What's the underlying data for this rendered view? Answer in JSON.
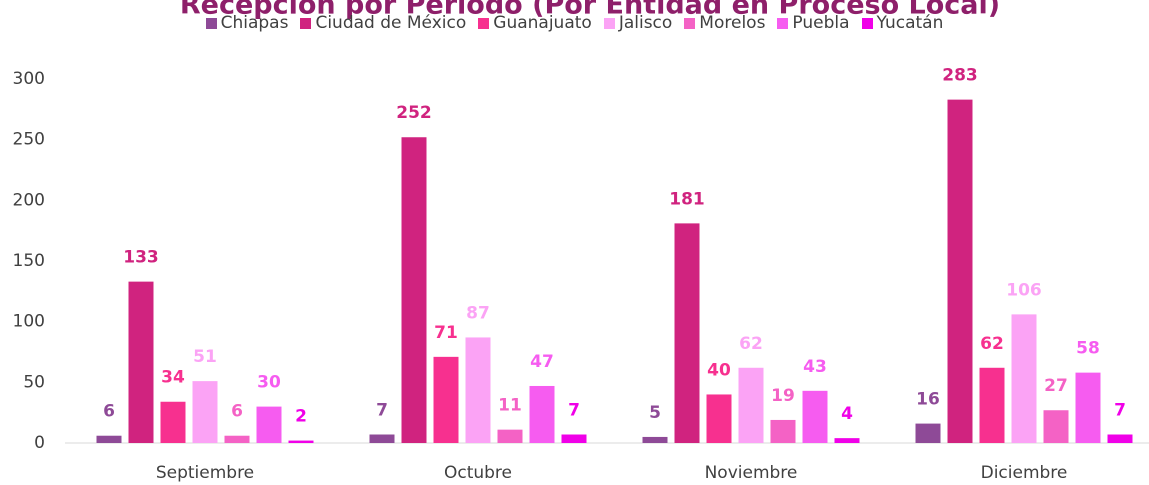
{
  "chart_data": {
    "type": "bar",
    "title": "Recepción por Periodo (Por Entidad en Proceso Local)",
    "categories": [
      "Septiembre",
      "Octubre",
      "Noviembre",
      "Diciembre"
    ],
    "series": [
      {
        "name": "Chiapas",
        "color": "#8e4a97",
        "values": [
          6,
          7,
          5,
          16
        ]
      },
      {
        "name": "Ciudad de México",
        "color": "#d0237f",
        "values": [
          133,
          252,
          181,
          283
        ]
      },
      {
        "name": "Guanajuato",
        "color": "#f7308f",
        "values": [
          34,
          71,
          40,
          62
        ]
      },
      {
        "name": "Jalisco",
        "color": "#fba3f5",
        "values": [
          51,
          87,
          62,
          106
        ]
      },
      {
        "name": "Morelos",
        "color": "#f462c5",
        "values": [
          6,
          11,
          19,
          27
        ]
      },
      {
        "name": "Puebla",
        "color": "#f65cf0",
        "values": [
          30,
          47,
          43,
          58
        ]
      },
      {
        "name": "Yucatán",
        "color": "#f000e8",
        "values": [
          2,
          7,
          4,
          7
        ]
      }
    ],
    "ylim": [
      0,
      300
    ],
    "yticks": [
      0,
      50,
      100,
      150,
      200,
      250,
      300
    ],
    "legend": "top"
  }
}
